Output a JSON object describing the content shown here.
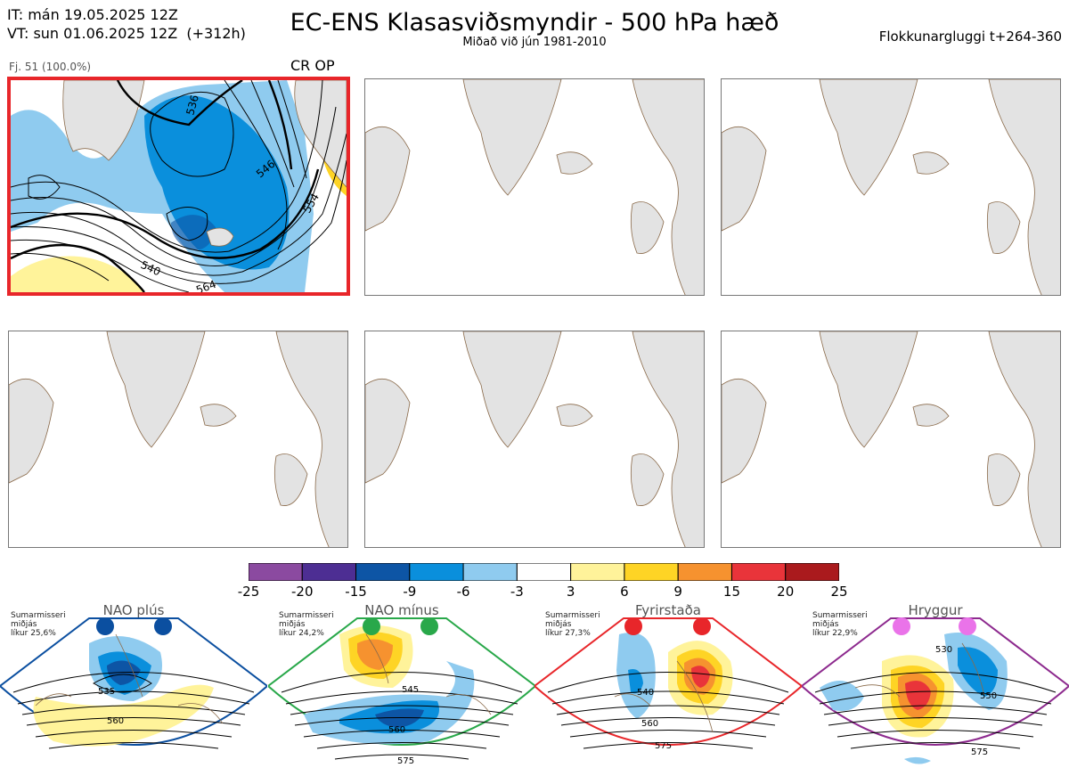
{
  "header": {
    "it_line": "IT: mán 19.05.2025 12Z",
    "vt_line": "VT: sun 01.06.2025 12Z  (+312h)",
    "title": "EC-ENS Klasasviðsmyndir - 500 hPa hæð",
    "subtitle": "Miðað við jún 1981-2010",
    "window": "Flokkunargluggi t+264-360"
  },
  "panel_main": {
    "member_label": "Fj. 51 (100.0%)",
    "crop_label": "CR OP",
    "contour_labels": [
      "536",
      "546",
      "540",
      "554",
      "564"
    ]
  },
  "colorbar": {
    "ticks": [
      "-25",
      "-20",
      "-15",
      "-9",
      "-6",
      "-3",
      "3",
      "6",
      "9",
      "15",
      "20",
      "25"
    ],
    "colors": [
      "#8b4aa0",
      "#4d2e93",
      "#0d55a5",
      "#0a8fdc",
      "#8fcbef",
      "#ffffff",
      "#fff39a",
      "#fed425",
      "#f6922f",
      "#e9343a",
      "#aa1a1d"
    ]
  },
  "regimes": [
    {
      "name": "NAO plús",
      "season": "Sumarmisseri",
      "mean": "miðjás",
      "prob": "líkur 25,6%",
      "color": "#0b4fa0",
      "labels": [
        "535",
        "560"
      ]
    },
    {
      "name": "NAO mínus",
      "season": "Sumarmisseri",
      "mean": "miðjás",
      "prob": "líkur 24,2%",
      "color": "#29a84a",
      "labels": [
        "545",
        "560",
        "575"
      ]
    },
    {
      "name": "Fyrirstaða",
      "season": "Sumarmisseri",
      "mean": "miðjás",
      "prob": "líkur 27,3%",
      "color": "#e8262a",
      "labels": [
        "540",
        "560",
        "575"
      ]
    },
    {
      "name": "Hryggur",
      "season": "Sumarmisseri",
      "mean": "miðjás",
      "prob": "líkur 22,9%",
      "color": "#8d2a8e",
      "labels": [
        "530",
        "550",
        "575"
      ]
    }
  ]
}
